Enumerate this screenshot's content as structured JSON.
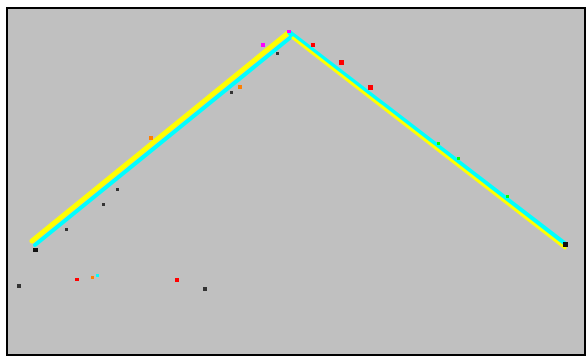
{
  "scene": {
    "background_color": "#c0c0c0",
    "border_color": "#000000",
    "track_colors": {
      "outer": "#ffff00",
      "inner": "#00ffff"
    },
    "particle_colors": [
      "#ff00ff",
      "#ff0000",
      "#ff8000",
      "#00ff00",
      "#00ffff",
      "#333333"
    ]
  }
}
